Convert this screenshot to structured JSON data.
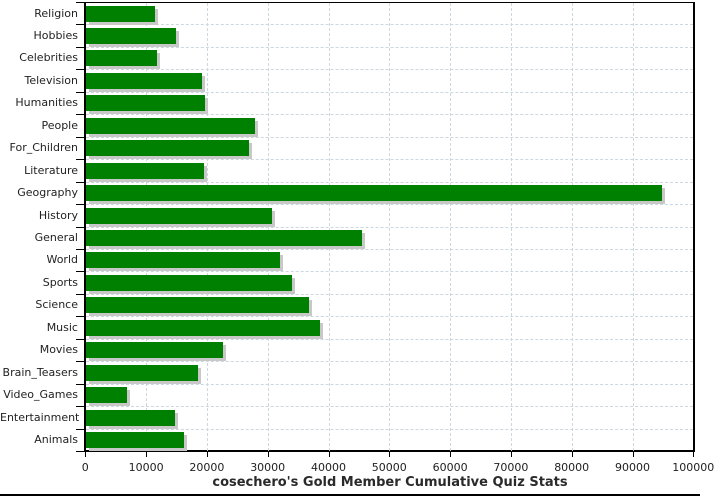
{
  "page": {
    "title": "cosechero's Gold Member Cumulative Quiz Stats"
  },
  "chart_data": {
    "type": "bar",
    "orientation": "horizontal",
    "title": "cosechero's Gold Member Cumulative Quiz Stats",
    "categories": [
      "Religion",
      "Hobbies",
      "Celebrities",
      "Television",
      "Humanities",
      "People",
      "For_Children",
      "Literature",
      "Geography",
      "History",
      "General",
      "World",
      "Sports",
      "Science",
      "Music",
      "Movies",
      "Brain_Teasers",
      "Video_Games",
      "Entertainment",
      "Animals"
    ],
    "values": [
      11400,
      14800,
      11700,
      19100,
      19600,
      27900,
      26800,
      19500,
      94900,
      30700,
      45500,
      31900,
      34000,
      36800,
      38500,
      22600,
      18400,
      6800,
      14600,
      16100
    ],
    "xlabel": "",
    "ylabel": "",
    "xlim": [
      0,
      100000
    ],
    "x_ticks": [
      0,
      10000,
      20000,
      30000,
      40000,
      50000,
      60000,
      70000,
      80000,
      90000,
      100000
    ],
    "x_tick_labels": [
      "0",
      "10000",
      "20000",
      "30000",
      "40000",
      "50000",
      "60000",
      "70000",
      "80000",
      "90000",
      "100000"
    ],
    "grid": "dashed-both-axes",
    "legend": "none",
    "colors": {
      "bar": "#008000",
      "bar_shadow": "#c8c8c8",
      "grid": "#ccd8dd",
      "axis": "#000000",
      "text": "#222222",
      "background": "#ffffff"
    }
  }
}
